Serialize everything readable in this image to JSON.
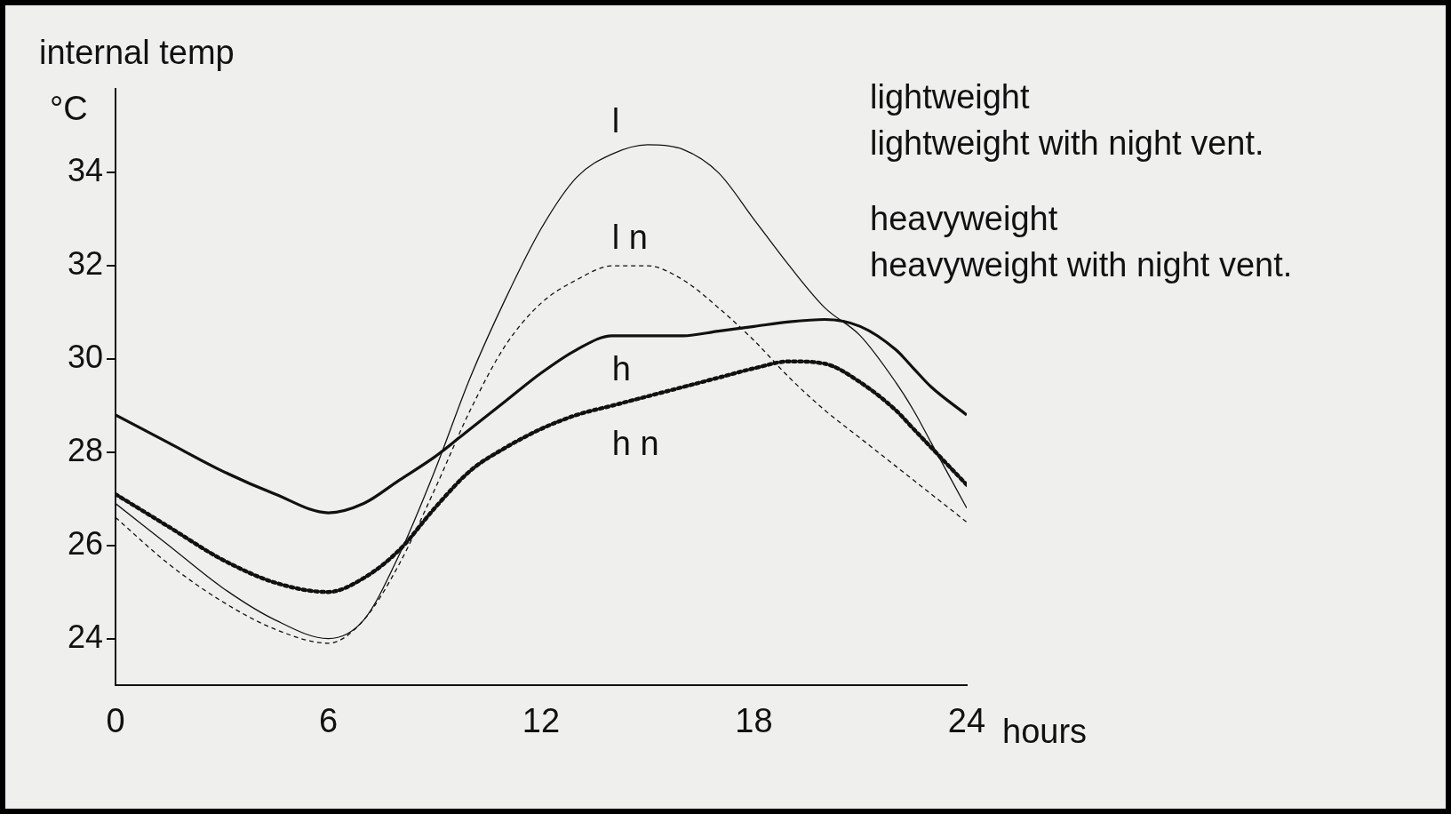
{
  "chart_data": {
    "type": "line",
    "ylabel": "internal temp",
    "xlabel": "hours",
    "x": [
      0,
      1.5,
      3,
      4.5,
      6,
      7,
      8,
      9,
      10,
      11,
      12,
      13,
      14,
      15,
      16,
      17,
      18,
      19,
      20,
      21,
      22,
      22.5,
      23,
      24
    ],
    "series": [
      {
        "name": "l",
        "color": "#111111",
        "line_style": "solid",
        "values": [
          26.9,
          26.0,
          25.1,
          24.4,
          24.0,
          24.4,
          25.8,
          27.6,
          29.6,
          31.3,
          32.8,
          33.9,
          34.4,
          34.6,
          34.5,
          34.0,
          33.0,
          32.0,
          31.1,
          30.5,
          29.5,
          28.9,
          28.2,
          26.8
        ]
      },
      {
        "name": "l n",
        "color": "#111111",
        "line_style": "dashed",
        "values": [
          26.6,
          25.6,
          24.8,
          24.2,
          23.9,
          24.4,
          25.6,
          27.2,
          28.9,
          30.3,
          31.2,
          31.7,
          32.0,
          32.0,
          31.7,
          31.1,
          30.4,
          29.6,
          28.9,
          28.3,
          27.7,
          27.4,
          27.1,
          26.5
        ]
      },
      {
        "name": "h",
        "color": "#111111",
        "line_style": "solid",
        "values": [
          28.8,
          28.2,
          27.6,
          27.1,
          26.7,
          26.9,
          27.4,
          27.9,
          28.5,
          29.1,
          29.7,
          30.2,
          30.5,
          30.5,
          30.5,
          30.6,
          30.7,
          30.8,
          30.85,
          30.7,
          30.2,
          29.8,
          29.4,
          28.8
        ]
      },
      {
        "name": "h n",
        "color": "#111111",
        "line_style": "dotted",
        "values": [
          27.1,
          26.4,
          25.7,
          25.2,
          25.0,
          25.3,
          25.9,
          26.8,
          27.6,
          28.1,
          28.5,
          28.8,
          29.0,
          29.2,
          29.4,
          29.6,
          29.8,
          29.95,
          29.9,
          29.5,
          28.9,
          28.5,
          28.1,
          27.3
        ]
      }
    ],
    "xlim": [
      0,
      24
    ],
    "xticks": [
      0,
      6,
      12,
      18,
      24
    ],
    "ylim": [
      23,
      35.8
    ],
    "yticks": [
      24,
      26,
      28,
      30,
      32,
      34
    ],
    "grid": false,
    "legend": false,
    "marker": "none",
    "annotations": [
      "°C",
      "lightweight",
      "lightweight with night vent.",
      "heavyweight",
      "heavyweight with night vent."
    ]
  }
}
